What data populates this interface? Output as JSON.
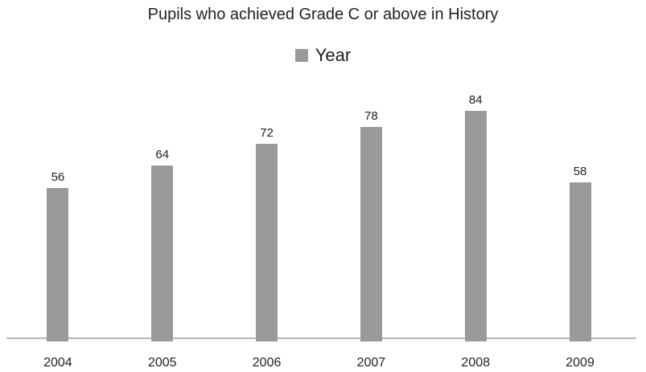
{
  "chart_data": {
    "type": "bar",
    "title": "Pupils who achieved Grade C or above in History",
    "legend": "Year",
    "legend_position": "top-center",
    "series_name": "Year",
    "categories": [
      "2004",
      "2005",
      "2006",
      "2007",
      "2008",
      "2009"
    ],
    "values": [
      56,
      64,
      72,
      78,
      84,
      58
    ],
    "data_labels": true,
    "xlabel": "",
    "ylabel": "",
    "ylim": [
      0,
      93
    ],
    "grid": false,
    "y_axis_visible": false,
    "bar_color": "#9a9a9a",
    "axis_line_color": "#b7b7b7",
    "text_color": "#1f1f1f"
  }
}
